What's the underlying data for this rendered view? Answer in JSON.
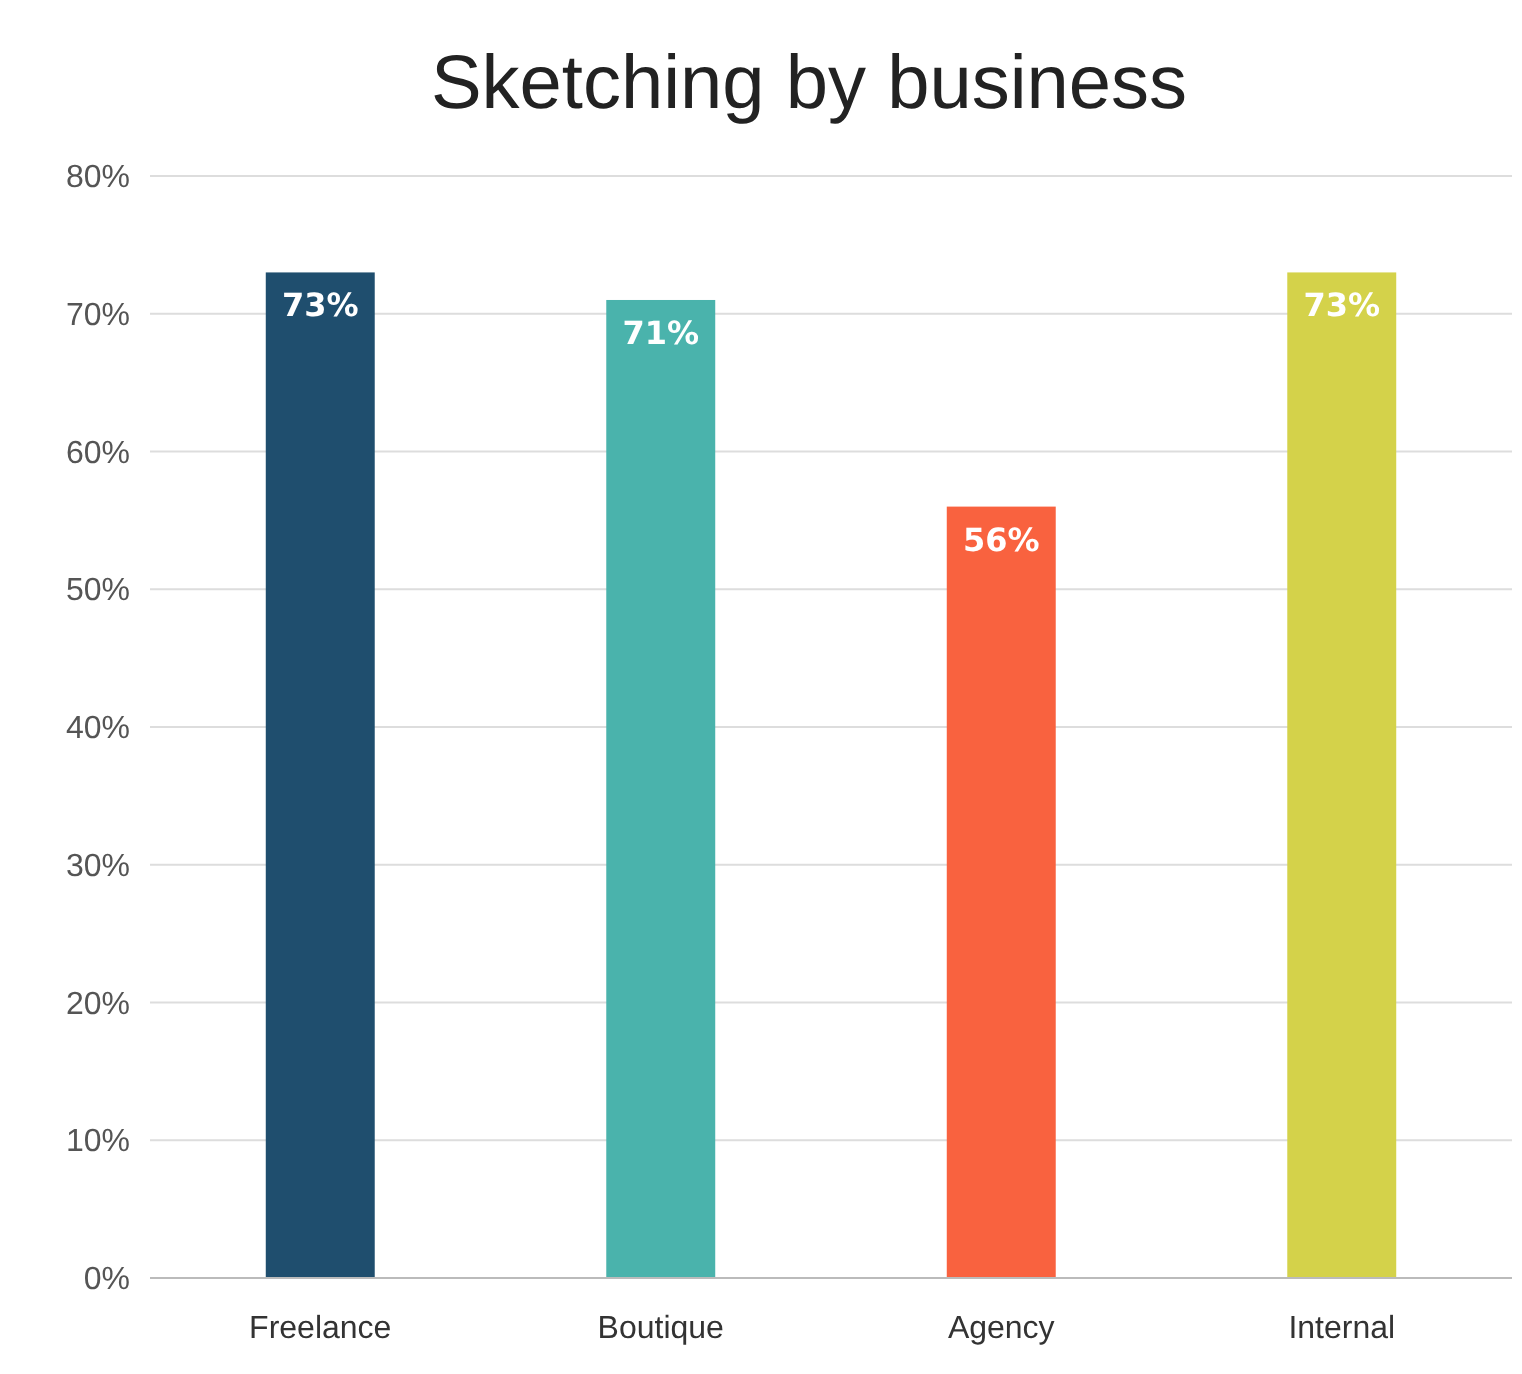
{
  "chart_data": {
    "type": "bar",
    "title": "Sketching by business",
    "categories": [
      "Freelance",
      "Boutique",
      "Agency",
      "Internal"
    ],
    "values": [
      73,
      71,
      56,
      73
    ],
    "colors": [
      "#1f4e6e",
      "#4ab3ac",
      "#f9623f",
      "#d4d24a"
    ],
    "ylim": [
      0,
      80
    ],
    "yticks": [
      {
        "value": 0,
        "label": "0%"
      },
      {
        "value": 10,
        "label": "10%"
      },
      {
        "value": 20,
        "label": "20%"
      },
      {
        "value": 30,
        "label": "30%"
      },
      {
        "value": 40,
        "label": "40%"
      },
      {
        "value": 50,
        "label": "50%"
      },
      {
        "value": 60,
        "label": "60%"
      },
      {
        "value": 70,
        "label": "70%"
      },
      {
        "value": 80,
        "label": "80%"
      }
    ],
    "value_labels": [
      "73%",
      "71%",
      "56%",
      "73%"
    ],
    "grid": "y"
  }
}
